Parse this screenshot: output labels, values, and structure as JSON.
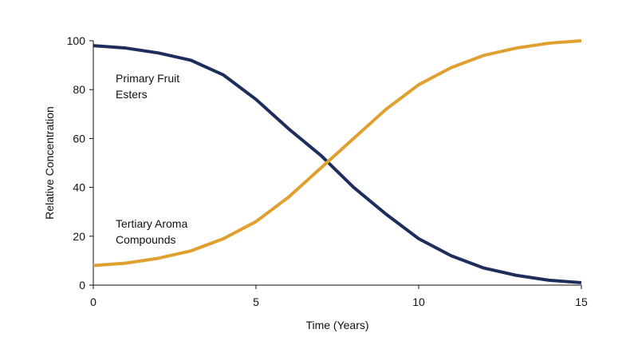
{
  "chart_data": {
    "type": "line",
    "x_label": "Time (Years)",
    "y_label": "Relative Concentration",
    "x": [
      0,
      1,
      2,
      3,
      4,
      5,
      6,
      7,
      8,
      9,
      10,
      11,
      12,
      13,
      14,
      15
    ],
    "series": [
      {
        "name": "Primary Fruit Esters",
        "color": "#1f2d5c",
        "values": [
          98,
          97,
          95,
          92,
          86,
          76,
          64,
          53,
          40,
          29,
          19,
          12,
          7,
          4,
          2,
          1
        ]
      },
      {
        "name": "Tertiary Aroma Compounds",
        "color": "#e0a030",
        "values": [
          8,
          9,
          11,
          14,
          19,
          26,
          36,
          48,
          60,
          72,
          82,
          89,
          94,
          97,
          99,
          100
        ]
      }
    ],
    "xlim": [
      0,
      15
    ],
    "xticks": [
      0,
      5,
      10,
      15
    ],
    "ylim": [
      0,
      100
    ],
    "yticks": [
      0,
      20,
      40,
      60,
      80,
      100
    ],
    "grid": false
  }
}
